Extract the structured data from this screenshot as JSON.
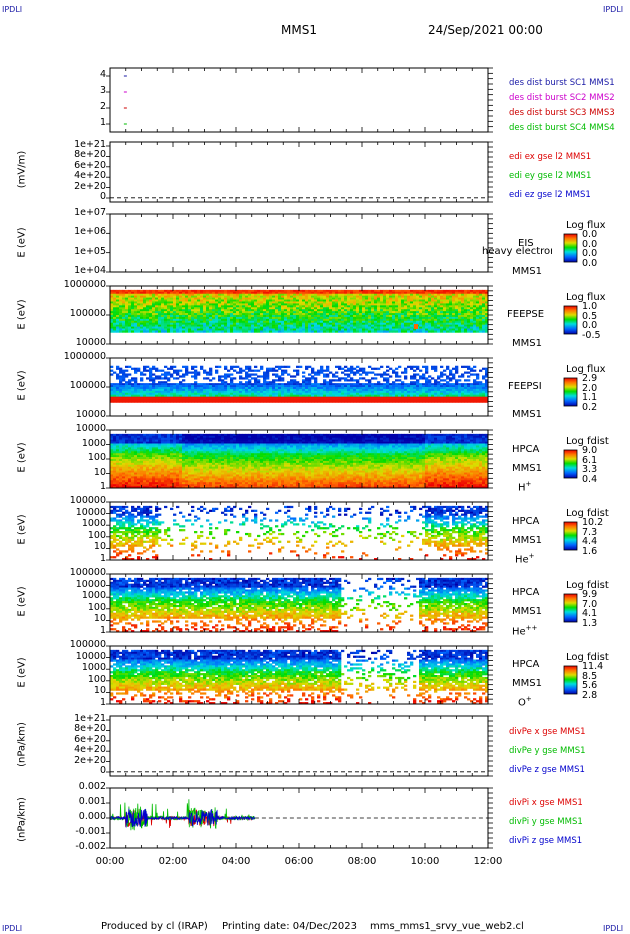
{
  "header": {
    "corner_tag": "IPDLI",
    "spacecraft": "MMS1",
    "date": "24/Sep/2021 00:00"
  },
  "footer": {
    "produced_by": "Produced by cl (IRAP)",
    "printing_date": "Printing date: 04/Dec/2023",
    "file": "mms_mms1_srvy_vue_web2.cl"
  },
  "x_axis": {
    "ticks": [
      "00:00",
      "02:00",
      "04:00",
      "06:00",
      "08:00",
      "10:00",
      "12:00"
    ]
  },
  "colors": {
    "sc1": "#1a1aa6",
    "sc2": "#cc00cc",
    "sc3": "#cc0000",
    "sc4": "#00bb00",
    "x_comp": "#dd0000",
    "y_comp": "#00bb00",
    "z_comp": "#0000cc"
  },
  "chart_data": [
    {
      "type": "scatter",
      "panel": "burst",
      "ylabel": "",
      "y_ticks": [
        "4",
        "3",
        "2",
        "1"
      ],
      "ylim": [
        0.5,
        4.5
      ],
      "series": [
        {
          "name": "des dist burst SC1 MMS1",
          "color": "#1a1aa6",
          "x": [
            0.25
          ],
          "y": [
            4
          ]
        },
        {
          "name": "des dist burst SC2 MMS2",
          "color": "#cc00cc",
          "x": [
            0.25
          ],
          "y": [
            3
          ]
        },
        {
          "name": "des dist burst SC3 MMS3",
          "color": "#cc0000",
          "x": [
            0.25
          ],
          "y": [
            2
          ]
        },
        {
          "name": "des dist burst SC4 MMS4",
          "color": "#00bb00",
          "x": [
            0.25
          ],
          "y": [
            1
          ]
        }
      ]
    },
    {
      "type": "line",
      "panel": "edi",
      "ylabel": "(mV/m)",
      "y_ticks": [
        "1e+21",
        "8e+20",
        "6e+20",
        "4e+20",
        "2e+20",
        "0"
      ],
      "ylim": [
        0,
        1e+21
      ],
      "series": [
        {
          "name": "edi ex gse l2 MMS1",
          "color": "#dd0000"
        },
        {
          "name": "edi ey gse l2 MMS1",
          "color": "#00bb00"
        },
        {
          "name": "edi ez gse l2 MMS1",
          "color": "#0000cc"
        }
      ]
    },
    {
      "type": "heatmap",
      "panel": "eis",
      "ylabel": "E (eV)",
      "y_ticks": [
        "1e+07",
        "1e+06",
        "1e+05",
        "1e+04"
      ],
      "instrument": [
        "EIS",
        "MMS1"
      ],
      "overlay_text": "heavy electron to",
      "colorbar": {
        "title": "Log flux",
        "values": [
          "0.0",
          "0.0",
          "0.0",
          "0.0"
        ]
      }
    },
    {
      "type": "heatmap",
      "panel": "feeps_e",
      "ylabel": "E (eV)",
      "y_ticks": [
        "1000000",
        "100000",
        "10000"
      ],
      "instrument": [
        "FEEPSE",
        "MMS1"
      ],
      "colorbar": {
        "title": "Log flux",
        "values": [
          "1.0",
          "0.5",
          "0.0",
          "-0.5"
        ]
      }
    },
    {
      "type": "heatmap",
      "panel": "feeps_i",
      "ylabel": "E (eV)",
      "y_ticks": [
        "1000000",
        "100000",
        "10000"
      ],
      "instrument": [
        "FEEPSI",
        "MMS1"
      ],
      "colorbar": {
        "title": "Log flux",
        "values": [
          "2.9",
          "2.0",
          "1.1",
          "0.2"
        ]
      }
    },
    {
      "type": "heatmap",
      "panel": "hpca_h",
      "ylabel": "E (eV)",
      "y_ticks": [
        "10000",
        "1000",
        "100",
        "10",
        "1"
      ],
      "instrument": [
        "HPCA",
        "MMS1"
      ],
      "species": "H",
      "charge": "+",
      "colorbar": {
        "title": "Log fdist",
        "values": [
          "9.0",
          "6.1",
          "3.3",
          "0.4"
        ]
      }
    },
    {
      "type": "heatmap",
      "panel": "hpca_he",
      "ylabel": "E (eV)",
      "y_ticks": [
        "100000",
        "10000",
        "1000",
        "100",
        "10",
        "1"
      ],
      "instrument": [
        "HPCA",
        "MMS1"
      ],
      "species": "He",
      "charge": "+",
      "colorbar": {
        "title": "Log fdist",
        "values": [
          "10.2",
          "7.3",
          "4.4",
          "1.6"
        ]
      }
    },
    {
      "type": "heatmap",
      "panel": "hpca_hepp",
      "ylabel": "E (eV)",
      "y_ticks": [
        "100000",
        "10000",
        "1000",
        "100",
        "10",
        "1"
      ],
      "instrument": [
        "HPCA",
        "MMS1"
      ],
      "species": "He",
      "charge": "++",
      "colorbar": {
        "title": "Log fdist",
        "values": [
          "9.9",
          "7.0",
          "4.1",
          "1.3"
        ]
      }
    },
    {
      "type": "heatmap",
      "panel": "hpca_o",
      "ylabel": "E (eV)",
      "y_ticks": [
        "100000",
        "10000",
        "1000",
        "100",
        "10",
        "1"
      ],
      "instrument": [
        "HPCA",
        "MMS1"
      ],
      "species": "O",
      "charge": "+",
      "colorbar": {
        "title": "Log fdist",
        "values": [
          "11.4",
          "8.5",
          "5.6",
          "2.8"
        ]
      }
    },
    {
      "type": "line",
      "panel": "divpe",
      "ylabel": "(nPa/km)",
      "y_ticks": [
        "1e+21",
        "8e+20",
        "6e+20",
        "4e+20",
        "2e+20",
        "0"
      ],
      "ylim": [
        0,
        1e+21
      ],
      "series": [
        {
          "name": "divPe x gse MMS1",
          "color": "#dd0000"
        },
        {
          "name": "divPe y gse MMS1",
          "color": "#00bb00"
        },
        {
          "name": "divPe z gse MMS1",
          "color": "#0000cc"
        }
      ]
    },
    {
      "type": "line",
      "panel": "divpi",
      "ylabel": "(nPa/km)",
      "y_ticks": [
        "0.002",
        "0.001",
        "0.000",
        "-0.001",
        "-0.002"
      ],
      "ylim": [
        -0.0025,
        0.0025
      ],
      "data_end_hour": 4.6,
      "series": [
        {
          "name": "divPi x gse MMS1",
          "color": "#dd0000"
        },
        {
          "name": "divPi y gse MMS1",
          "color": "#00bb00"
        },
        {
          "name": "divPi z gse MMS1",
          "color": "#0000cc"
        }
      ]
    }
  ]
}
